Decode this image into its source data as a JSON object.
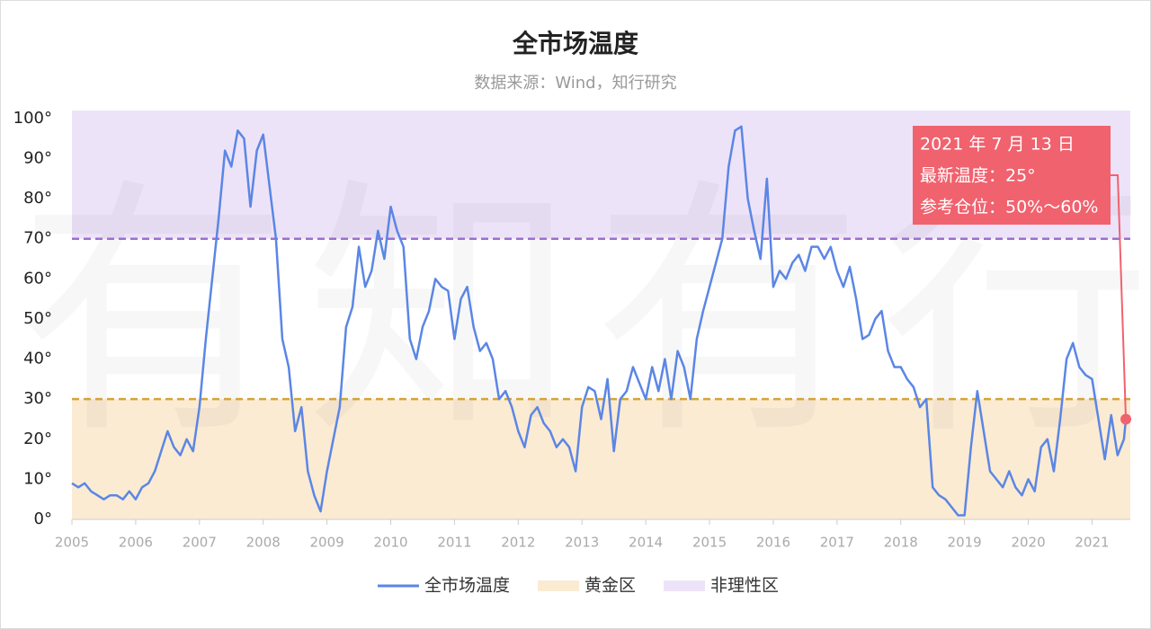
{
  "chart_data": {
    "type": "line",
    "title": "全市场温度",
    "subtitle": "数据来源：Wind，知行研究",
    "watermark": "有知有行",
    "x": [
      2005.0,
      2005.1,
      2005.2,
      2005.3,
      2005.4,
      2005.5,
      2005.6,
      2005.7,
      2005.8,
      2005.9,
      2006.0,
      2006.1,
      2006.2,
      2006.3,
      2006.4,
      2006.5,
      2006.6,
      2006.7,
      2006.8,
      2006.9,
      2007.0,
      2007.1,
      2007.2,
      2007.3,
      2007.4,
      2007.5,
      2007.6,
      2007.7,
      2007.8,
      2007.9,
      2008.0,
      2008.1,
      2008.2,
      2008.3,
      2008.4,
      2008.5,
      2008.6,
      2008.7,
      2008.8,
      2008.9,
      2009.0,
      2009.1,
      2009.2,
      2009.3,
      2009.4,
      2009.5,
      2009.6,
      2009.7,
      2009.8,
      2009.9,
      2010.0,
      2010.1,
      2010.2,
      2010.3,
      2010.4,
      2010.5,
      2010.6,
      2010.7,
      2010.8,
      2010.9,
      2011.0,
      2011.1,
      2011.2,
      2011.3,
      2011.4,
      2011.5,
      2011.6,
      2011.7,
      2011.8,
      2011.9,
      2012.0,
      2012.1,
      2012.2,
      2012.3,
      2012.4,
      2012.5,
      2012.6,
      2012.7,
      2012.8,
      2012.9,
      2013.0,
      2013.1,
      2013.2,
      2013.3,
      2013.4,
      2013.5,
      2013.6,
      2013.7,
      2013.8,
      2013.9,
      2014.0,
      2014.1,
      2014.2,
      2014.3,
      2014.4,
      2014.5,
      2014.6,
      2014.7,
      2014.8,
      2014.9,
      2015.0,
      2015.1,
      2015.2,
      2015.3,
      2015.4,
      2015.5,
      2015.6,
      2015.7,
      2015.8,
      2015.9,
      2016.0,
      2016.1,
      2016.2,
      2016.3,
      2016.4,
      2016.5,
      2016.6,
      2016.7,
      2016.8,
      2016.9,
      2017.0,
      2017.1,
      2017.2,
      2017.3,
      2017.4,
      2017.5,
      2017.6,
      2017.7,
      2017.8,
      2017.9,
      2018.0,
      2018.1,
      2018.2,
      2018.3,
      2018.4,
      2018.5,
      2018.6,
      2018.7,
      2018.8,
      2018.9,
      2019.0,
      2019.1,
      2019.2,
      2019.3,
      2019.4,
      2019.5,
      2019.6,
      2019.7,
      2019.8,
      2019.9,
      2020.0,
      2020.1,
      2020.2,
      2020.3,
      2020.4,
      2020.5,
      2020.6,
      2020.7,
      2020.8,
      2020.9,
      2021.0,
      2021.1,
      2021.2,
      2021.3,
      2021.4,
      2021.5,
      2021.53
    ],
    "series": [
      {
        "name": "全市场温度",
        "color": "#5b86e5",
        "values": [
          9,
          8,
          9,
          7,
          6,
          5,
          6,
          6,
          5,
          7,
          5,
          8,
          9,
          12,
          17,
          22,
          18,
          16,
          20,
          17,
          28,
          45,
          60,
          75,
          92,
          88,
          97,
          95,
          78,
          92,
          96,
          83,
          70,
          45,
          38,
          22,
          28,
          12,
          6,
          2,
          12,
          20,
          28,
          48,
          53,
          68,
          58,
          62,
          72,
          65,
          78,
          72,
          68,
          45,
          40,
          48,
          52,
          60,
          58,
          57,
          45,
          55,
          58,
          48,
          42,
          44,
          40,
          30,
          32,
          28,
          22,
          18,
          26,
          28,
          24,
          22,
          18,
          20,
          18,
          12,
          28,
          33,
          32,
          25,
          35,
          17,
          30,
          32,
          38,
          34,
          30,
          38,
          32,
          40,
          30,
          42,
          38,
          30,
          45,
          52,
          58,
          64,
          70,
          88,
          97,
          98,
          80,
          72,
          65,
          85,
          58,
          62,
          60,
          64,
          66,
          62,
          68,
          68,
          65,
          68,
          62,
          58,
          63,
          55,
          45,
          46,
          50,
          52,
          42,
          38,
          38,
          35,
          33,
          28,
          30,
          8,
          6,
          5,
          3,
          1,
          1,
          18,
          32,
          22,
          12,
          10,
          8,
          12,
          8,
          6,
          10,
          7,
          18,
          20,
          12,
          25,
          40,
          44,
          38,
          36,
          35,
          25,
          15,
          26,
          16,
          20,
          25
        ]
      }
    ],
    "bands": [
      {
        "name": "黄金区",
        "range": [
          0,
          30
        ],
        "color": "#fbebd3",
        "line_color": "#d4a437"
      },
      {
        "name": "非理性区",
        "range": [
          70,
          102
        ],
        "color": "#ede3f8",
        "line_color": "#9b6fd0"
      }
    ],
    "annotation": {
      "lines": [
        "2021 年 7 月 13 日",
        "最新温度：25°",
        "参考仓位：50%～60%"
      ],
      "color": "#f0626e"
    },
    "xlim": [
      2005,
      2021.6
    ],
    "xticks": [
      2005,
      2006,
      2007,
      2008,
      2009,
      2010,
      2011,
      2012,
      2013,
      2014,
      2015,
      2016,
      2017,
      2018,
      2019,
      2020,
      2021
    ],
    "ylim": [
      0,
      102
    ],
    "yticks": [
      {
        "value": 0,
        "label": "0°"
      },
      {
        "value": 10,
        "label": "10°"
      },
      {
        "value": 20,
        "label": "20°"
      },
      {
        "value": 30,
        "label": "30°"
      },
      {
        "value": 40,
        "label": "40°"
      },
      {
        "value": 50,
        "label": "50°"
      },
      {
        "value": 60,
        "label": "60°"
      },
      {
        "value": 70,
        "label": "70°"
      },
      {
        "value": 80,
        "label": "80°"
      },
      {
        "value": 90,
        "label": "90°"
      },
      {
        "value": 100,
        "label": "100°"
      }
    ]
  }
}
